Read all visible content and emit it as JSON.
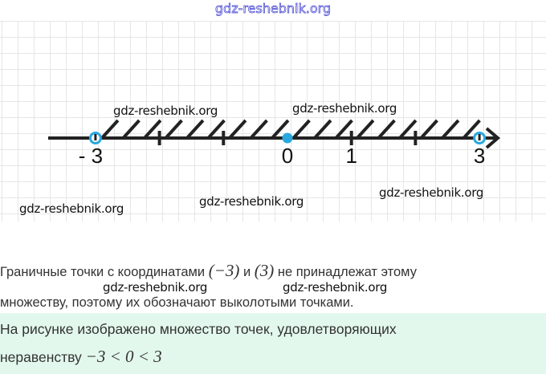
{
  "watermark_top": "gdz-reshebnik.org",
  "watermarks": [
    "gdz-reshebnik.org",
    "gdz-reshebnik.org",
    "gdz-reshebnik.org",
    "gdz-reshebnik.org",
    "gdz-reshebnik.org",
    "gdz-reshebnik.org",
    "gdz-reshebnik.org"
  ],
  "number_line": {
    "labels": [
      {
        "value": -3,
        "text": "- 3"
      },
      {
        "value": 0,
        "text": "0"
      },
      {
        "value": 1,
        "text": "1"
      },
      {
        "value": 3,
        "text": "3"
      }
    ],
    "ticks": [
      -2,
      -1,
      1,
      2
    ],
    "open_points": [
      -3,
      3
    ],
    "filled_points": [
      0
    ],
    "shaded_interval": [
      -3,
      3
    ],
    "point_color": "#29a8e0"
  },
  "text": {
    "line1_a": "Граничные точки с координатами ",
    "math1": "(−3)",
    "line1_b": " и ",
    "math2": "(3)",
    "line1_c": " не принадлежат этому",
    "line2": "множеству, поэтому их обозначают выколотыми точками."
  },
  "conclusion": {
    "line1": "На рисунке изображено множество точек, удовлетворяющих",
    "line2_a": "неравенству ",
    "math": "−3 < 0 < 3",
    "background": "#e3f8ec"
  }
}
